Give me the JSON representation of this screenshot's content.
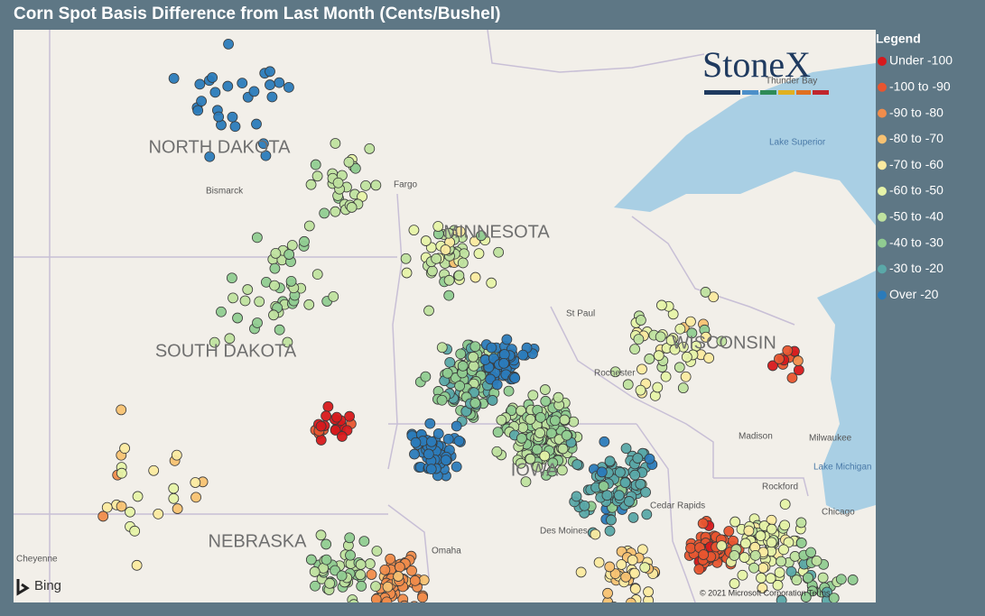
{
  "title": "Corn Spot Basis Difference from Last Month (Cents/Bushel)",
  "legend": {
    "title": "Legend",
    "items": [
      {
        "label": "Under -100",
        "color": "#d7191c"
      },
      {
        "label": "-100 to -90",
        "color": "#e8552f"
      },
      {
        "label": "-90 to -80",
        "color": "#f08c4b"
      },
      {
        "label": "-80 to -70",
        "color": "#f8c272"
      },
      {
        "label": "-70 to -60",
        "color": "#fbeaa0"
      },
      {
        "label": "-60 to -50",
        "color": "#e6f3a8"
      },
      {
        "label": "-50 to -40",
        "color": "#bfe29f"
      },
      {
        "label": "-40 to -30",
        "color": "#90cc91"
      },
      {
        "label": "-30 to -20",
        "color": "#5aa8a8"
      },
      {
        "label": "Over -20",
        "color": "#2b7bba"
      }
    ]
  },
  "map": {
    "states": [
      "NORTH DAKOTA",
      "MINNESOTA",
      "SOUTH DAKOTA",
      "WISCONSIN",
      "IOWA",
      "NEBRASKA"
    ],
    "places": [
      "Bismarck",
      "Fargo",
      "St Paul",
      "Rochester",
      "Madison",
      "Milwaukee",
      "Rockford",
      "Chicago",
      "Cheyenne",
      "Omaha",
      "Des Moines",
      "Cedar Rapids",
      "Thunder Bay"
    ],
    "water": [
      "Lake Superior",
      "Lake Michigan"
    ],
    "logo": "StoneX",
    "provider": "Bing",
    "copyright": "© 2021 Microsoft Corporation Terms"
  }
}
